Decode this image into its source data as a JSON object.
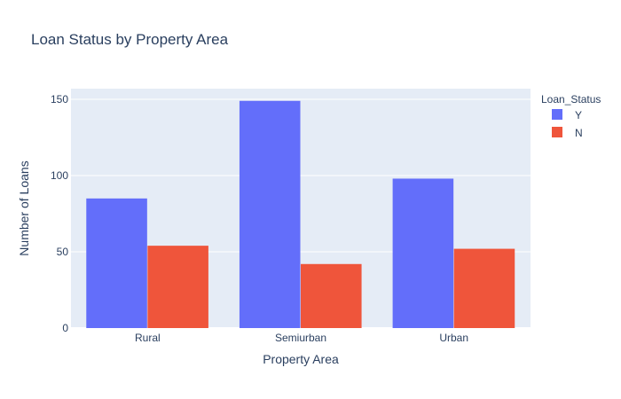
{
  "chart_data": {
    "type": "bar",
    "title": "Loan Status by Property Area",
    "xlabel": "Property Area",
    "ylabel": "Number of Loans",
    "categories": [
      "Rural",
      "Semiurban",
      "Urban"
    ],
    "series": [
      {
        "name": "Y",
        "values": [
          85,
          149,
          98
        ],
        "color": "#636efa"
      },
      {
        "name": "N",
        "values": [
          54,
          42,
          52
        ],
        "color": "#ef553b"
      }
    ],
    "ylim": [
      0,
      157
    ],
    "yticks": [
      0,
      50,
      100,
      150
    ],
    "legend_title": "Loan_Status",
    "legend_position": "top-right",
    "grid": true,
    "plot_bg": "#e5ecf6"
  }
}
